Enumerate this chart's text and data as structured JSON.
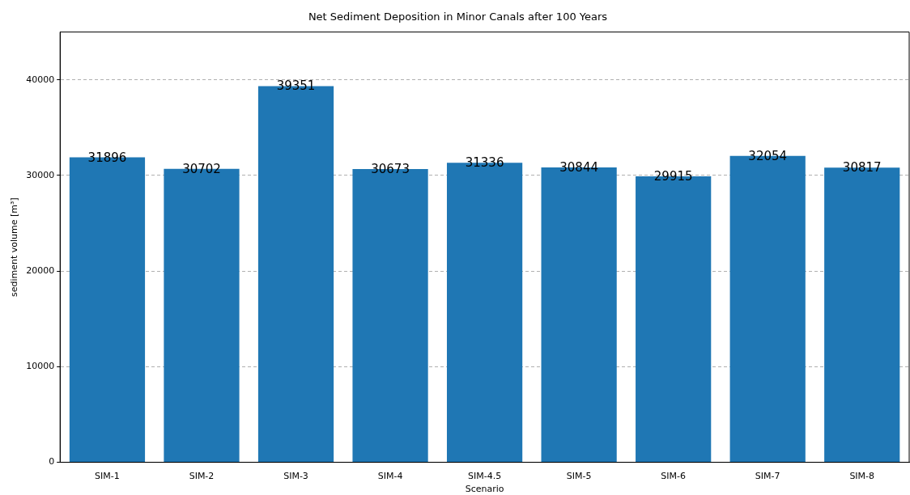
{
  "chart_data": {
    "type": "bar",
    "title": "Net Sediment Deposition in Minor Canals after 100 Years",
    "xlabel": "Scenario",
    "ylabel": "sediment volume [m³]",
    "categories": [
      "SIM-1",
      "SIM-2",
      "SIM-3",
      "SIM-4",
      "SIM-4.5",
      "SIM-5",
      "SIM-6",
      "SIM-7",
      "SIM-8"
    ],
    "values": [
      31896,
      30702,
      39351,
      30673,
      31336,
      30844,
      29915,
      32054,
      30817
    ],
    "color": "#1f77b4",
    "ylim": [
      0,
      45000
    ],
    "yticks": [
      0,
      10000,
      20000,
      30000,
      40000
    ],
    "grid": "y",
    "data_labels": true,
    "legend": false
  }
}
